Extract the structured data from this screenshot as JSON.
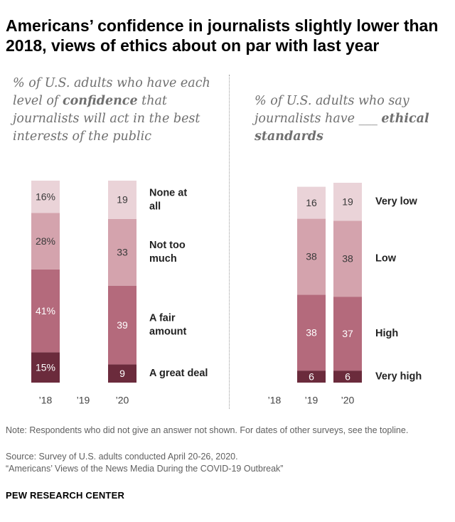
{
  "title": "Americans’ confidence in journalists slightly lower than 2018, views of ethics about on par with last year",
  "colors": {
    "seg0": "#6b2b3c",
    "seg1": "#b46a7c",
    "seg2": "#d4a3ad",
    "seg3": "#ead3d8",
    "label_light": "#ffffff",
    "label_dark": "#3a3a3a"
  },
  "chart_data": [
    {
      "type": "bar",
      "stacked": true,
      "subtitle_parts": [
        "% of U.S. adults who have each level of ",
        "confidence",
        " that journalists will act in the best interests of the public"
      ],
      "categories": [
        "’18",
        "’19",
        "’20"
      ],
      "series": [
        {
          "name": "A great deal",
          "values": [
            15,
            null,
            9
          ],
          "labels": [
            "15%",
            "",
            "9"
          ]
        },
        {
          "name": "A fair amount",
          "values": [
            41,
            null,
            39
          ],
          "labels": [
            "41%",
            "",
            "39"
          ]
        },
        {
          "name": "Not too much",
          "values": [
            28,
            null,
            33
          ],
          "labels": [
            "28%",
            "",
            "33"
          ]
        },
        {
          "name": "None at all",
          "values": [
            16,
            null,
            19
          ],
          "labels": [
            "16%",
            "",
            "19"
          ]
        }
      ],
      "legend": [
        {
          "lines": [
            "A great deal"
          ]
        },
        {
          "lines": [
            "A fair",
            "amount"
          ]
        },
        {
          "lines": [
            "Not too",
            "much"
          ]
        },
        {
          "lines": [
            "None at",
            "all"
          ]
        }
      ],
      "legend_placement": "right",
      "grid": false
    },
    {
      "type": "bar",
      "stacked": true,
      "subtitle_parts": [
        "% of U.S. adults who say journalists have ___ ",
        "ethical standards",
        ""
      ],
      "categories": [
        "’18",
        "’19",
        "’20"
      ],
      "series": [
        {
          "name": "Very high",
          "values": [
            null,
            6,
            6
          ],
          "labels": [
            "",
            "6",
            "6"
          ]
        },
        {
          "name": "High",
          "values": [
            null,
            38,
            37
          ],
          "labels": [
            "",
            "38",
            "37"
          ]
        },
        {
          "name": "Low",
          "values": [
            null,
            38,
            38
          ],
          "labels": [
            "",
            "38",
            "38"
          ]
        },
        {
          "name": "Very low",
          "values": [
            null,
            16,
            19
          ],
          "labels": [
            "",
            "16",
            "19"
          ]
        }
      ],
      "legend": [
        {
          "lines": [
            "Very high"
          ]
        },
        {
          "lines": [
            "High"
          ]
        },
        {
          "lines": [
            "Low"
          ]
        },
        {
          "lines": [
            "Very low"
          ]
        }
      ],
      "legend_placement": "right",
      "grid": false
    }
  ],
  "notes": {
    "note": "Note: Respondents who did not give an answer not shown. For dates of other surveys, see the topline.",
    "source": "Source: Survey of U.S. adults conducted April 20-26, 2020.",
    "report": "“Americans’ Views of the News Media During the COVID-19 Outbreak”"
  },
  "brand": "PEW RESEARCH CENTER"
}
